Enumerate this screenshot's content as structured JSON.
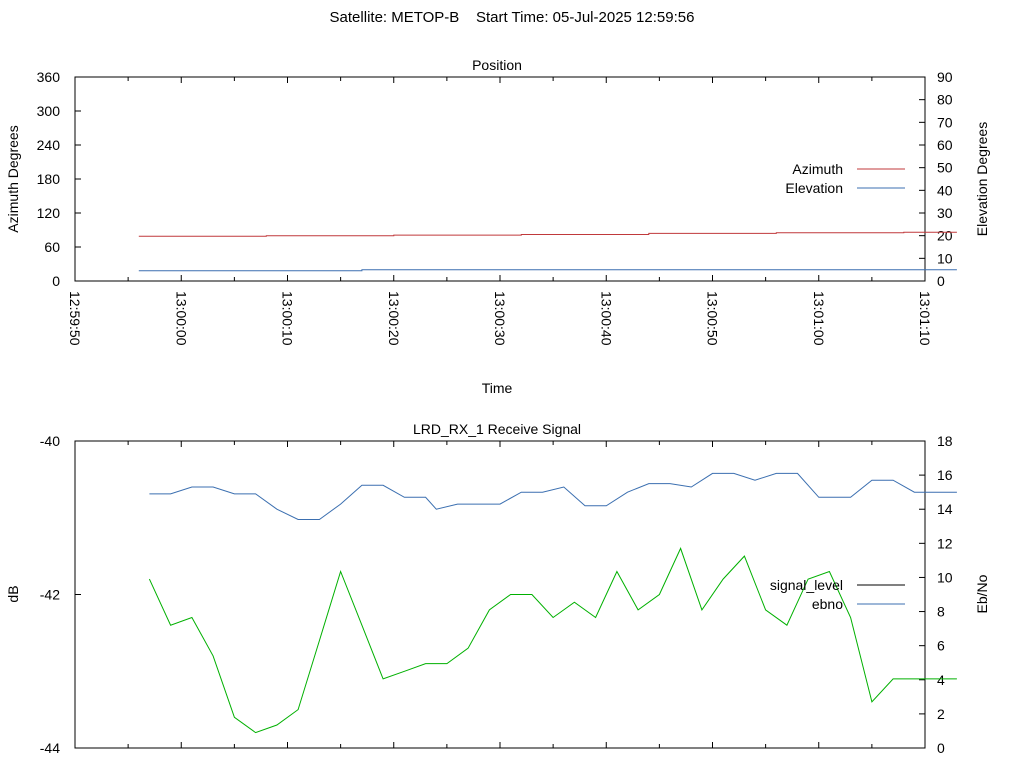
{
  "figure": {
    "title": "Satellite: METOP-B    Start Time: 05-Jul-2025 12:59:56"
  },
  "chart_data": [
    {
      "type": "line",
      "title": "Position",
      "xlabel": "Time",
      "ylabel": "Azimuth Degrees",
      "y2label": "Elevation Degrees",
      "x_ticks": [
        "12:59:50",
        "13:00:00",
        "13:00:10",
        "13:00:20",
        "13:00:30",
        "13:00:40",
        "13:00:50",
        "13:01:00",
        "13:01:10"
      ],
      "x_range_seconds": [
        0,
        80
      ],
      "ylim": [
        0,
        360
      ],
      "y_ticks": [
        "0",
        "60",
        "120",
        "180",
        "240",
        "300",
        "360"
      ],
      "y2lim": [
        0,
        90
      ],
      "y2_ticks": [
        "0",
        "10",
        "20",
        "30",
        "40",
        "50",
        "60",
        "70",
        "80",
        "90"
      ],
      "legend_position": "right",
      "series": [
        {
          "name": "Azimuth",
          "axis": "y",
          "color": "#c0393b",
          "x": [
            6,
            18,
            18,
            30,
            30,
            42,
            42,
            54,
            54,
            66,
            66,
            78,
            78,
            83
          ],
          "values": [
            79,
            79,
            80,
            80,
            81,
            81,
            82,
            82,
            84,
            84,
            85,
            85,
            86,
            86
          ]
        },
        {
          "name": "Elevation",
          "axis": "y2",
          "color": "#3b6fb0",
          "x": [
            6,
            27,
            27,
            83
          ],
          "values": [
            4.5,
            4.5,
            5,
            5
          ]
        }
      ]
    },
    {
      "type": "line",
      "title": "LRD_RX_1 Receive Signal",
      "ylabel": "dB",
      "y2label": "Eb/No",
      "ylim": [
        -44,
        -40
      ],
      "y_ticks": [
        "-44",
        "-42",
        "-40"
      ],
      "y2lim": [
        0,
        18
      ],
      "y2_ticks": [
        "0",
        "2",
        "4",
        "6",
        "8",
        "10",
        "12",
        "14",
        "16",
        "18"
      ],
      "legend_position": "right",
      "series": [
        {
          "name": "signal_level",
          "axis": "y",
          "color": "#000000",
          "legend_only": true,
          "x": [],
          "values": []
        },
        {
          "name": "ebno",
          "axis": "y2",
          "color": "#3b6fb0",
          "x": [
            7,
            9,
            11,
            13,
            15,
            17,
            19,
            21,
            23,
            25,
            27,
            29,
            31,
            33,
            34,
            36,
            38,
            40,
            42,
            44,
            46,
            48,
            50,
            52,
            54,
            56,
            58,
            60,
            62,
            64,
            66,
            68,
            70,
            71,
            73,
            75,
            77,
            79,
            81,
            83
          ],
          "values": [
            14.9,
            14.9,
            15.3,
            15.3,
            14.9,
            14.9,
            14,
            13.4,
            13.4,
            14.3,
            15.4,
            15.4,
            14.7,
            14.7,
            14,
            14.3,
            14.3,
            14.3,
            15.0,
            15.0,
            15.3,
            14.2,
            14.2,
            15.0,
            15.5,
            15.5,
            15.3,
            16.1,
            16.1,
            15.7,
            16.1,
            16.1,
            14.7,
            14.7,
            14.7,
            15.7,
            15.7,
            15.0,
            15.0,
            15.0
          ]
        },
        {
          "name": "",
          "axis": "y",
          "color": "#00b000",
          "x": [
            7,
            9,
            11,
            13,
            15,
            17,
            19,
            21,
            23,
            25,
            27,
            29,
            31,
            33,
            35,
            37,
            39,
            41,
            43,
            45,
            47,
            49,
            51,
            53,
            55,
            57,
            59,
            61,
            63,
            65,
            67,
            69,
            71,
            73,
            75,
            77,
            79,
            81,
            83
          ],
          "values": [
            -41.8,
            -42.4,
            -42.3,
            -42.8,
            -43.6,
            -43.8,
            -43.7,
            -43.5,
            -42.6,
            -41.7,
            -42.4,
            -43.1,
            -43.0,
            -42.9,
            -42.9,
            -42.7,
            -42.2,
            -42.0,
            -42.0,
            -42.3,
            -42.1,
            -42.3,
            -41.7,
            -42.2,
            -42.0,
            -41.4,
            -42.2,
            -41.8,
            -41.5,
            -42.2,
            -42.4,
            -41.8,
            -41.7,
            -42.3,
            -43.4,
            -43.1,
            -43.1,
            -43.1,
            -43.1
          ]
        }
      ]
    }
  ]
}
